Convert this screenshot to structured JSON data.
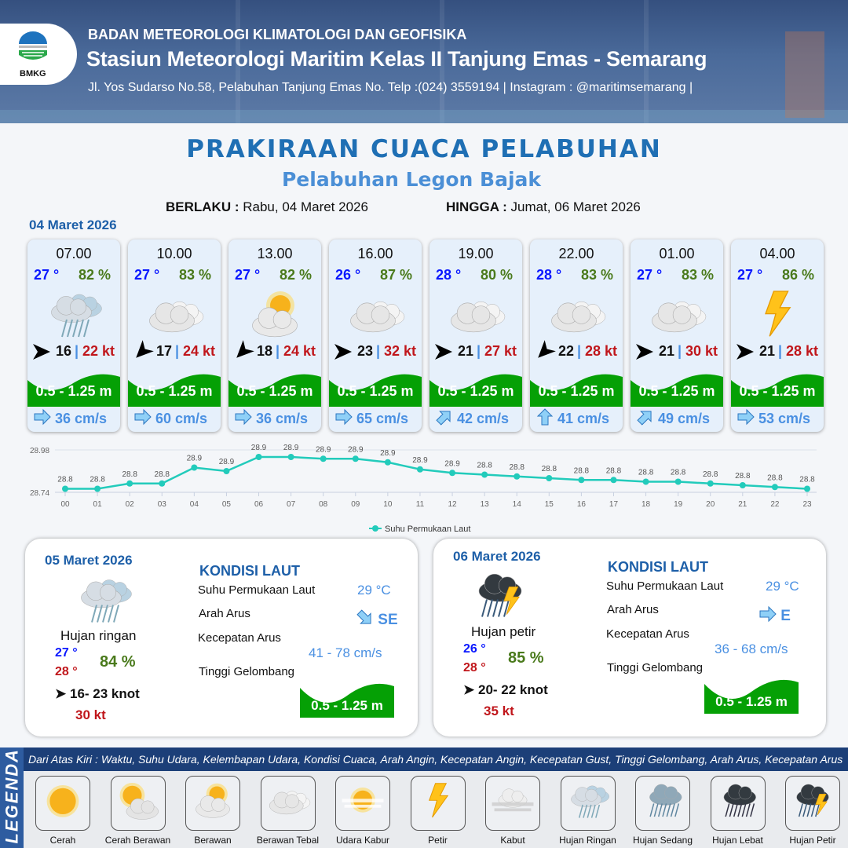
{
  "header": {
    "logo_text": "BMKG",
    "org": "BADAN METEOROLOGI KLIMATOLOGI DAN GEOFISIKA",
    "station": "Stasiun Meteorologi Maritim Kelas II Tanjung Emas - Semarang",
    "address": "Jl. Yos Sudarso No.58, Pelabuhan Tanjung Emas No. Telp :(024) 3559194 | Instagram : @maritimsemarang |"
  },
  "title": "PRAKIRAAN CUACA PELABUHAN",
  "subtitle": "Pelabuhan Legon Bajak",
  "validity": {
    "from_label": "BERLAKU :",
    "from": "Rabu, 04 Maret 2026",
    "to_label": "HINGGA :",
    "to": "Jumat, 06 Maret 2026"
  },
  "day1": {
    "date": "04 Maret 2026",
    "forecasts": [
      {
        "time": "07.00",
        "temp": "27 °",
        "humidity": "82 %",
        "weather": "hujan-ringan",
        "wind_dir_deg": 0,
        "wind": "16",
        "gust": "22 kt",
        "wave": "0.5 - 1.25 m",
        "current_dir_deg": 0,
        "current": "36 cm/s"
      },
      {
        "time": "10.00",
        "temp": "27 °",
        "humidity": "83 %",
        "weather": "berawan-tebal",
        "wind_dir_deg": 135,
        "wind": "17",
        "gust": "24 kt",
        "wave": "0.5 - 1.25 m",
        "current_dir_deg": 0,
        "current": "60 cm/s"
      },
      {
        "time": "13.00",
        "temp": "27 °",
        "humidity": "82 %",
        "weather": "berawan",
        "wind_dir_deg": 135,
        "wind": "18",
        "gust": "24 kt",
        "wave": "0.5 - 1.25 m",
        "current_dir_deg": 0,
        "current": "36 cm/s"
      },
      {
        "time": "16.00",
        "temp": "26 °",
        "humidity": "87 %",
        "weather": "berawan-tebal",
        "wind_dir_deg": 0,
        "wind": "23",
        "gust": "32 kt",
        "wave": "0.5 - 1.25 m",
        "current_dir_deg": 0,
        "current": "65 cm/s"
      },
      {
        "time": "19.00",
        "temp": "28 °",
        "humidity": "80 %",
        "weather": "berawan-tebal",
        "wind_dir_deg": 0,
        "wind": "21",
        "gust": "27 kt",
        "wave": "0.5 - 1.25 m",
        "current_dir_deg": -45,
        "current": "42 cm/s"
      },
      {
        "time": "22.00",
        "temp": "28 °",
        "humidity": "83 %",
        "weather": "berawan-tebal",
        "wind_dir_deg": 135,
        "wind": "22",
        "gust": "28 kt",
        "wave": "0.5 - 1.25 m",
        "current_dir_deg": -90,
        "current": "41 cm/s"
      },
      {
        "time": "01.00",
        "temp": "27 °",
        "humidity": "83 %",
        "weather": "berawan-tebal",
        "wind_dir_deg": 0,
        "wind": "21",
        "gust": "30 kt",
        "wave": "0.5 - 1.25 m",
        "current_dir_deg": -45,
        "current": "49 cm/s"
      },
      {
        "time": "04.00",
        "temp": "27 °",
        "humidity": "86 %",
        "weather": "petir",
        "wind_dir_deg": 0,
        "wind": "21",
        "gust": "28 kt",
        "wave": "0.5 - 1.25 m",
        "current_dir_deg": 0,
        "current": "53 cm/s"
      }
    ]
  },
  "chart_data": {
    "type": "line",
    "categories": [
      "00",
      "01",
      "02",
      "03",
      "04",
      "05",
      "06",
      "07",
      "08",
      "09",
      "10",
      "11",
      "12",
      "13",
      "14",
      "15",
      "16",
      "17",
      "18",
      "19",
      "20",
      "21",
      "22",
      "23"
    ],
    "series": [
      {
        "name": "Suhu Permukaan Laut",
        "values": [
          28.76,
          28.76,
          28.79,
          28.79,
          28.88,
          28.86,
          28.94,
          28.94,
          28.93,
          28.93,
          28.91,
          28.87,
          28.85,
          28.84,
          28.83,
          28.82,
          28.81,
          28.81,
          28.8,
          28.8,
          28.79,
          28.78,
          28.77,
          28.76
        ],
        "labels": [
          "28.8",
          "28.8",
          "28.8",
          "28.8",
          "28.9",
          "28.9",
          "28.9",
          "28.9",
          "28.9",
          "28.9",
          "28.9",
          "28.9",
          "28.9",
          "28.8",
          "28.8",
          "28.8",
          "28.8",
          "28.8",
          "28.8",
          "28.8",
          "28.8",
          "28.8",
          "28.8",
          "28.8"
        ]
      }
    ],
    "y_ticks": [
      "28.98",
      "28.74"
    ],
    "ylim": [
      28.74,
      28.98
    ],
    "grid": true,
    "legend": "bottom-center",
    "color": "#22cbbb"
  },
  "panels": [
    {
      "date": "05 Maret 2026",
      "weather": "hujan-ringan",
      "condition": "Hujan ringan",
      "temp_min": "27 °",
      "temp_max": "28 °",
      "humidity": "84 %",
      "wind": "16- 23 knot",
      "gust": "30 kt",
      "sea_title": "KONDISI LAUT",
      "sst_label": "Suhu Permukaan Laut",
      "sst": "29 °C",
      "dir_label": "Arah Arus",
      "dir": "SE",
      "dir_deg": 45,
      "speed_label": "Kecepatan Arus",
      "speed": "41 - 78 cm/s",
      "wave_label": "Tinggi Gelombang",
      "wave": "0.5 - 1.25 m"
    },
    {
      "date": "06 Maret 2026",
      "weather": "hujan-petir",
      "condition": "Hujan petir",
      "temp_min": "26 °",
      "temp_max": "28 °",
      "humidity": "85 %",
      "wind": "20- 22 knot",
      "gust": "35 kt",
      "sea_title": "KONDISI LAUT",
      "sst_label": "Suhu Permukaan Laut",
      "sst": "29 °C",
      "dir_label": "Arah Arus",
      "dir": "E",
      "dir_deg": 0,
      "speed_label": "Kecepatan Arus",
      "speed": "36 - 68 cm/s",
      "wave_label": "Tinggi Gelombang",
      "wave": "0.5 - 1.25 m"
    }
  ],
  "legend": {
    "title": "LEGENDA",
    "description": "Dari Atas Kiri : Waktu, Suhu Udara, Kelembapan Udara, Kondisi Cuaca, Arah Angin, Kecepatan Angin, Kecepatan Gust, Tinggi Gelombang, Arah Arus, Kecepatan Arus",
    "items": [
      {
        "label": "Cerah",
        "icon": "cerah"
      },
      {
        "label": "Cerah Berawan",
        "icon": "cerah-berawan"
      },
      {
        "label": "Berawan",
        "icon": "berawan"
      },
      {
        "label": "Berawan Tebal",
        "icon": "berawan-tebal"
      },
      {
        "label": "Udara Kabur",
        "icon": "udara-kabur"
      },
      {
        "label": "Petir",
        "icon": "petir"
      },
      {
        "label": "Kabut",
        "icon": "kabut"
      },
      {
        "label": "Hujan Ringan",
        "icon": "hujan-ringan"
      },
      {
        "label": "Hujan Sedang",
        "icon": "hujan-sedang"
      },
      {
        "label": "Hujan Lebat",
        "icon": "hujan-lebat"
      },
      {
        "label": "Hujan Petir",
        "icon": "hujan-petir"
      }
    ]
  },
  "colors": {
    "temp": "#0a18ff",
    "humidity": "#4a7a1c",
    "gust": "#c0161b",
    "wave": "#05a005",
    "current": "#4a90e2",
    "title": "#1f6fb4"
  }
}
